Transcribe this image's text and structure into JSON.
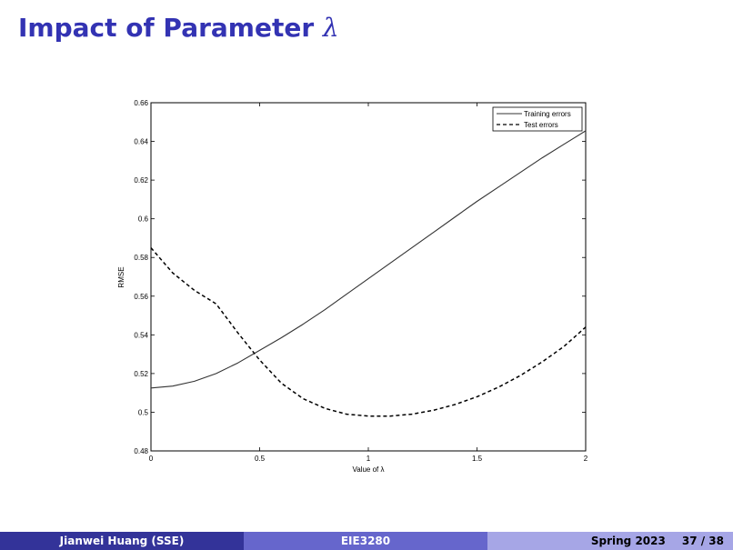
{
  "slide": {
    "title_prefix": "Impact of Parameter",
    "title_symbol": "λ"
  },
  "footer": {
    "author": "Jianwei Huang  (SSE)",
    "course": "EIE3280",
    "term": "Spring 2023",
    "page": "37 / 38"
  },
  "chart_data": {
    "type": "line",
    "xlabel": "Value of λ",
    "ylabel": "RMSE",
    "xlim": [
      0,
      2
    ],
    "ylim": [
      0.48,
      0.66
    ],
    "xticks": [
      0,
      0.5,
      1,
      1.5,
      2
    ],
    "xtick_labels": [
      "0",
      "0.5",
      "1",
      "1.5",
      "2"
    ],
    "yticks": [
      0.48,
      0.5,
      0.52,
      0.54,
      0.56,
      0.58,
      0.6,
      0.62,
      0.64,
      0.66
    ],
    "ytick_labels": [
      "0.48",
      "0.5",
      "0.52",
      "0.54",
      "0.56",
      "0.58",
      "0.6",
      "0.62",
      "0.64",
      "0.66"
    ],
    "grid": false,
    "legend_position": "top-right",
    "x": [
      0,
      0.1,
      0.2,
      0.3,
      0.4,
      0.5,
      0.6,
      0.7,
      0.8,
      0.9,
      1.0,
      1.1,
      1.2,
      1.3,
      1.4,
      1.5,
      1.6,
      1.7,
      1.8,
      1.9,
      2.0
    ],
    "series": [
      {
        "name": "Training errors",
        "style": "solid",
        "color": "#333333",
        "values": [
          0.5125,
          0.5135,
          0.516,
          0.52,
          0.5255,
          0.532,
          0.5385,
          0.5455,
          0.553,
          0.561,
          0.569,
          0.577,
          0.585,
          0.593,
          0.601,
          0.609,
          0.6165,
          0.624,
          0.6315,
          0.6385,
          0.6455
        ]
      },
      {
        "name": "Test errors",
        "style": "dashed",
        "color": "#000000",
        "values": [
          0.585,
          0.572,
          0.563,
          0.556,
          0.541,
          0.527,
          0.515,
          0.507,
          0.502,
          0.499,
          0.498,
          0.498,
          0.499,
          0.501,
          0.504,
          0.508,
          0.513,
          0.519,
          0.526,
          0.534,
          0.544
        ]
      }
    ]
  }
}
